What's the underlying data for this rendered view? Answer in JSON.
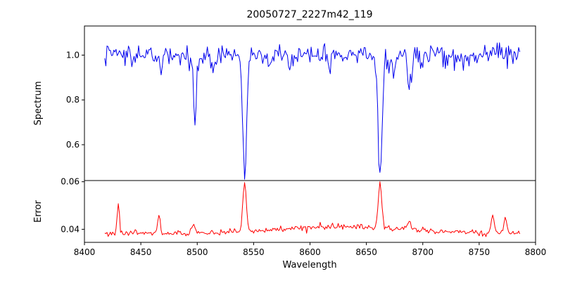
{
  "figure": {
    "title": "20050727_2227m42_119",
    "background": "#ffffff"
  },
  "chart_data": {
    "type": "line",
    "title": "20050727_2227m42_119",
    "xlabel": "Wavelength",
    "xlim": [
      8400,
      8800
    ],
    "x_ticks": [
      8400,
      8450,
      8500,
      8550,
      8600,
      8650,
      8700,
      8750,
      8800
    ],
    "x_data_range": [
      8418,
      8786
    ],
    "legend": "none",
    "grid": false,
    "panels": [
      {
        "name": "spectrum",
        "ylabel": "Spectrum",
        "color": "#0000ee",
        "ylim": [
          0.44,
          1.13
        ],
        "y_ticks": [
          {
            "value": 0.6,
            "label": "0.6"
          },
          {
            "value": 0.8,
            "label": "0.8"
          },
          {
            "value": 1.0,
            "label": "1.0"
          }
        ],
        "baseline": 1.0,
        "noise_sigma": 0.022,
        "spike_probability": 0.03,
        "spike_scale": 0.04,
        "feature_sign": -1,
        "features": [
          {
            "center": 8498.0,
            "amplitude": 0.35,
            "sigma": 1.2
          },
          {
            "center": 8542.1,
            "amplitude": 0.55,
            "sigma": 1.7
          },
          {
            "center": 8662.1,
            "amplitude": 0.54,
            "sigma": 1.7
          },
          {
            "center": 8468.0,
            "amplitude": 0.07,
            "sigma": 1.0
          },
          {
            "center": 8514.0,
            "amplitude": 0.06,
            "sigma": 1.0
          },
          {
            "center": 8582.0,
            "amplitude": 0.05,
            "sigma": 1.0
          },
          {
            "center": 8617.0,
            "amplitude": 0.05,
            "sigma": 1.0
          },
          {
            "center": 8674.0,
            "amplitude": 0.09,
            "sigma": 1.0
          },
          {
            "center": 8688.0,
            "amplitude": 0.16,
            "sigma": 1.2
          },
          {
            "center": 8736.0,
            "amplitude": 0.05,
            "sigma": 1.0
          }
        ],
        "broad_features": []
      },
      {
        "name": "error",
        "ylabel": "Error",
        "color": "#ff0000",
        "ylim": [
          0.0345,
          0.0605
        ],
        "y_ticks": [
          {
            "value": 0.04,
            "label": "0.04"
          },
          {
            "value": 0.06,
            "label": "0.06"
          }
        ],
        "baseline": 0.0383,
        "noise_sigma": 0.0006,
        "spike_probability": 0.02,
        "spike_scale": 0.0012,
        "feature_sign": 1,
        "features": [
          {
            "center": 8430.0,
            "amplitude": 0.0125,
            "sigma": 1.0
          },
          {
            "center": 8466.0,
            "amplitude": 0.007,
            "sigma": 1.2
          },
          {
            "center": 8497.0,
            "amplitude": 0.004,
            "sigma": 1.5
          },
          {
            "center": 8542.0,
            "amplitude": 0.0205,
            "sigma": 1.6
          },
          {
            "center": 8662.0,
            "amplitude": 0.0185,
            "sigma": 1.6
          },
          {
            "center": 8688.0,
            "amplitude": 0.004,
            "sigma": 1.2
          },
          {
            "center": 8762.0,
            "amplitude": 0.008,
            "sigma": 1.2
          },
          {
            "center": 8773.0,
            "amplitude": 0.0065,
            "sigma": 1.2
          }
        ],
        "broad_features": [
          {
            "center": 8630.0,
            "amplitude": 0.0028,
            "sigma": 55
          }
        ]
      }
    ]
  }
}
